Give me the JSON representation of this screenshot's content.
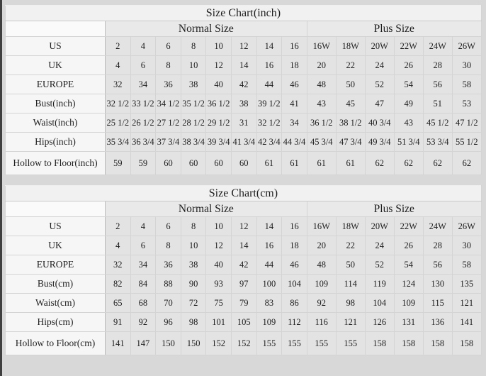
{
  "colors": {
    "page_background": "#d8d8d8",
    "cell_background": "#e3e3e3",
    "label_background": "#f6f6f6",
    "title_background": "#f1f1f1",
    "text": "#1e1e1e",
    "left_edge_line": "#3f3f3f"
  },
  "chart_data": [
    {
      "type": "table",
      "unit": "inch",
      "title": "Size Chart(inch)",
      "column_groups": [
        {
          "label": "Normal Size",
          "span": 8
        },
        {
          "label": "Plus Size",
          "span": 6
        }
      ],
      "rows": [
        {
          "label": "US",
          "values": [
            "2",
            "4",
            "6",
            "8",
            "10",
            "12",
            "14",
            "16",
            "16W",
            "18W",
            "20W",
            "22W",
            "24W",
            "26W"
          ]
        },
        {
          "label": "UK",
          "values": [
            "4",
            "6",
            "8",
            "10",
            "12",
            "14",
            "16",
            "18",
            "20",
            "22",
            "24",
            "26",
            "28",
            "30"
          ]
        },
        {
          "label": "EUROPE",
          "values": [
            "32",
            "34",
            "36",
            "38",
            "40",
            "42",
            "44",
            "46",
            "48",
            "50",
            "52",
            "54",
            "56",
            "58"
          ]
        },
        {
          "label": "Bust(inch)",
          "values": [
            "32 1/2",
            "33 1/2",
            "34 1/2",
            "35 1/2",
            "36 1/2",
            "38",
            "39 1/2",
            "41",
            "43",
            "45",
            "47",
            "49",
            "51",
            "53"
          ]
        },
        {
          "label": "Waist(inch)",
          "values": [
            "25 1/2",
            "26 1/2",
            "27 1/2",
            "28 1/2",
            "29 1/2",
            "31",
            "32 1/2",
            "34",
            "36 1/2",
            "38 1/2",
            "40 3/4",
            "43",
            "45 1/2",
            "47 1/2"
          ]
        },
        {
          "label": "Hips(inch)",
          "values": [
            "35 3/4",
            "36 3/4",
            "37 3/4",
            "38 3/4",
            "39 3/4",
            "41 3/4",
            "42 3/4",
            "44 3/4",
            "45 3/4",
            "47 3/4",
            "49 3/4",
            "51 3/4",
            "53 3/4",
            "55 1/2"
          ]
        },
        {
          "label": "Hollow to Floor(inch)",
          "values": [
            "59",
            "59",
            "60",
            "60",
            "60",
            "60",
            "61",
            "61",
            "61",
            "61",
            "62",
            "62",
            "62",
            "62"
          ]
        }
      ]
    },
    {
      "type": "table",
      "unit": "cm",
      "title": "Size Chart(cm)",
      "column_groups": [
        {
          "label": "Normal Size",
          "span": 8
        },
        {
          "label": "Plus Size",
          "span": 6
        }
      ],
      "rows": [
        {
          "label": "US",
          "values": [
            "2",
            "4",
            "6",
            "8",
            "10",
            "12",
            "14",
            "16",
            "16W",
            "18W",
            "20W",
            "22W",
            "24W",
            "26W"
          ]
        },
        {
          "label": "UK",
          "values": [
            "4",
            "6",
            "8",
            "10",
            "12",
            "14",
            "16",
            "18",
            "20",
            "22",
            "24",
            "26",
            "28",
            "30"
          ]
        },
        {
          "label": "EUROPE",
          "values": [
            "32",
            "34",
            "36",
            "38",
            "40",
            "42",
            "44",
            "46",
            "48",
            "50",
            "52",
            "54",
            "56",
            "58"
          ]
        },
        {
          "label": "Bust(cm)",
          "values": [
            "82",
            "84",
            "88",
            "90",
            "93",
            "97",
            "100",
            "104",
            "109",
            "114",
            "119",
            "124",
            "130",
            "135"
          ]
        },
        {
          "label": "Waist(cm)",
          "values": [
            "65",
            "68",
            "70",
            "72",
            "75",
            "79",
            "83",
            "86",
            "92",
            "98",
            "104",
            "109",
            "115",
            "121"
          ]
        },
        {
          "label": "Hips(cm)",
          "values": [
            "91",
            "92",
            "96",
            "98",
            "101",
            "105",
            "109",
            "112",
            "116",
            "121",
            "126",
            "131",
            "136",
            "141"
          ]
        },
        {
          "label": "Hollow to Floor(cm)",
          "values": [
            "141",
            "147",
            "150",
            "150",
            "152",
            "152",
            "155",
            "155",
            "155",
            "155",
            "158",
            "158",
            "158",
            "158"
          ]
        }
      ]
    }
  ]
}
